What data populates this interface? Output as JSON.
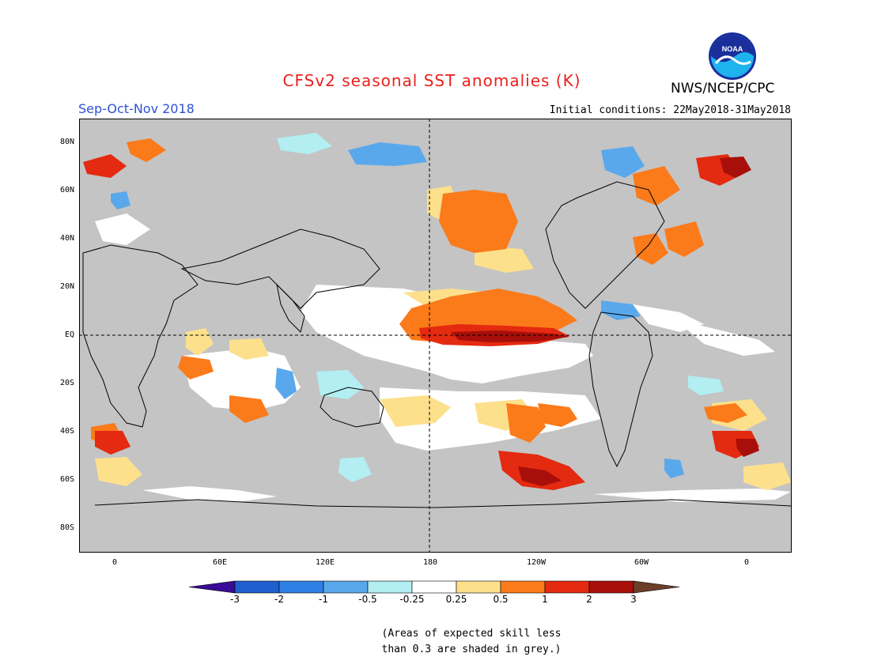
{
  "title": "CFSv2 seasonal SST anomalies (K)",
  "season": "Sep-Oct-Nov 2018",
  "initial_conditions": "Initial conditions: 22May2018-31May2018",
  "agency": "NWS/NCEP/CPC",
  "logo_text": "NOAA",
  "lat_labels": [
    "80N",
    "60N",
    "40N",
    "20N",
    "EQ",
    "20S",
    "40S",
    "60S",
    "80S"
  ],
  "lon_labels": [
    "0",
    "60E",
    "120E",
    "180",
    "120W",
    "60W",
    "0"
  ],
  "colorbar": {
    "ticks": [
      "-3",
      "-2",
      "-1",
      "-0.5",
      "-0.25",
      "0.25",
      "0.5",
      "1",
      "2",
      "3"
    ],
    "colors": [
      "#3a0b96",
      "#1f5fcf",
      "#2f7fe6",
      "#5aa8ec",
      "#b2eef2",
      "#ffffff",
      "#fde08c",
      "#fb7a1a",
      "#e42a10",
      "#a80f0a",
      "#6b3f2a"
    ]
  },
  "note_lines": [
    "(Areas of expected skill less",
    "than 0.3 are shaded in grey.)"
  ],
  "colors": {
    "title": "#e8211d",
    "season": "#2d51d6",
    "grey_mask": "#c4c4c4"
  }
}
